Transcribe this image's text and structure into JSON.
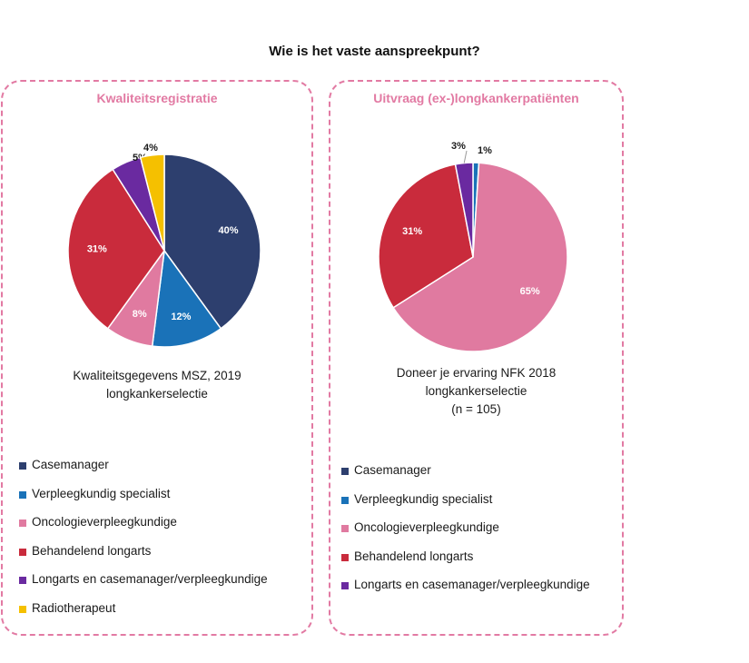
{
  "title": "Wie is het vaste aanspreekpunt?",
  "colors": {
    "Casemanager": "#2d3f6e",
    "Verpleegkundig specialist": "#1a72b8",
    "Oncologieverpleegkundige": "#e07aa0",
    "Behandelend longarts": "#c92b3c",
    "Longarts en casemanager/verpleegkundige": "#6a2aa0",
    "Radiotherapeut": "#f5c000"
  },
  "chart_data": [
    {
      "type": "pie",
      "title": "Kwaliteitsregistratie",
      "caption": [
        "Kwaliteitsgegevens MSZ, 2019",
        "longkankerselectie"
      ],
      "categories": [
        "Casemanager",
        "Verpleegkundig specialist",
        "Oncologieverpleegkundige",
        "Behandelend longarts",
        "Longarts en casemanager/verpleegkundige",
        "Radiotherapeut"
      ],
      "values": [
        40,
        12,
        8,
        31,
        5,
        4
      ],
      "labels": [
        "40%",
        "12%",
        "8%",
        "31%",
        "5%",
        "4%"
      ],
      "legend_position": "bottom"
    },
    {
      "type": "pie",
      "title": "Uitvraag (ex-)longkankerpatiënten",
      "caption": [
        "Doneer je ervaring NFK 2018",
        "longkankerselectie",
        "(n = 105)"
      ],
      "categories": [
        "Casemanager",
        "Verpleegkundig specialist",
        "Oncologieverpleegkundige",
        "Behandelend longarts",
        "Longarts en casemanager/verpleegkundige"
      ],
      "values": [
        0,
        1,
        65,
        31,
        3
      ],
      "labels": [
        "",
        "1%",
        "65%",
        "31%",
        "3%"
      ],
      "legend_position": "bottom"
    }
  ]
}
